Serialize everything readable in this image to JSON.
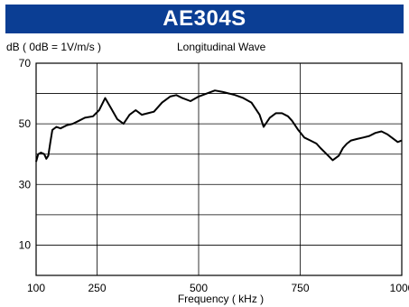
{
  "header": {
    "title": "AE304S",
    "bg_color": "#0b3e94"
  },
  "chart_data": {
    "type": "line",
    "title": "Longitudinal Wave",
    "ylabel": "dB ( 0dB = 1V/m/s )",
    "xlabel": "Frequency ( kHz )",
    "x_ticks": [
      100,
      250,
      500,
      750,
      1000
    ],
    "y_ticks": [
      10,
      30,
      50,
      70
    ],
    "xlim": [
      100,
      1000
    ],
    "ylim": [
      0,
      70
    ],
    "grid": true,
    "line_color": "#000000",
    "series": [
      {
        "x": [
          100,
          105,
          112,
          120,
          125,
          130,
          135,
          140,
          150,
          160,
          175,
          190,
          205,
          220,
          240,
          255,
          270,
          285,
          300,
          315,
          330,
          345,
          360,
          375,
          390,
          410,
          430,
          445,
          460,
          480,
          500,
          520,
          540,
          560,
          575,
          590,
          610,
          630,
          650,
          660,
          675,
          690,
          705,
          720,
          730,
          745,
          760,
          775,
          790,
          800,
          815,
          830,
          845,
          855,
          865,
          875,
          890,
          905,
          920,
          935,
          950,
          965,
          980,
          990,
          1000
        ],
        "values": [
          37.5,
          40.0,
          40.5,
          40.0,
          38.5,
          39.5,
          44.0,
          48.0,
          49.0,
          48.5,
          49.5,
          50.0,
          51.0,
          52.0,
          52.5,
          54.5,
          58.5,
          55.0,
          51.5,
          50.0,
          53.0,
          54.5,
          53.0,
          53.5,
          54.0,
          57.0,
          59.0,
          59.5,
          58.5,
          57.5,
          59.0,
          60.0,
          61.0,
          60.5,
          60.0,
          59.5,
          58.5,
          57.0,
          53.0,
          49.0,
          52.0,
          53.5,
          53.5,
          52.5,
          51.0,
          48.0,
          45.5,
          44.5,
          43.5,
          42.0,
          40.0,
          38.0,
          39.5,
          42.0,
          43.5,
          44.5,
          45.0,
          45.5,
          46.0,
          47.0,
          47.5,
          46.5,
          45.0,
          44.0,
          44.5
        ]
      }
    ]
  }
}
